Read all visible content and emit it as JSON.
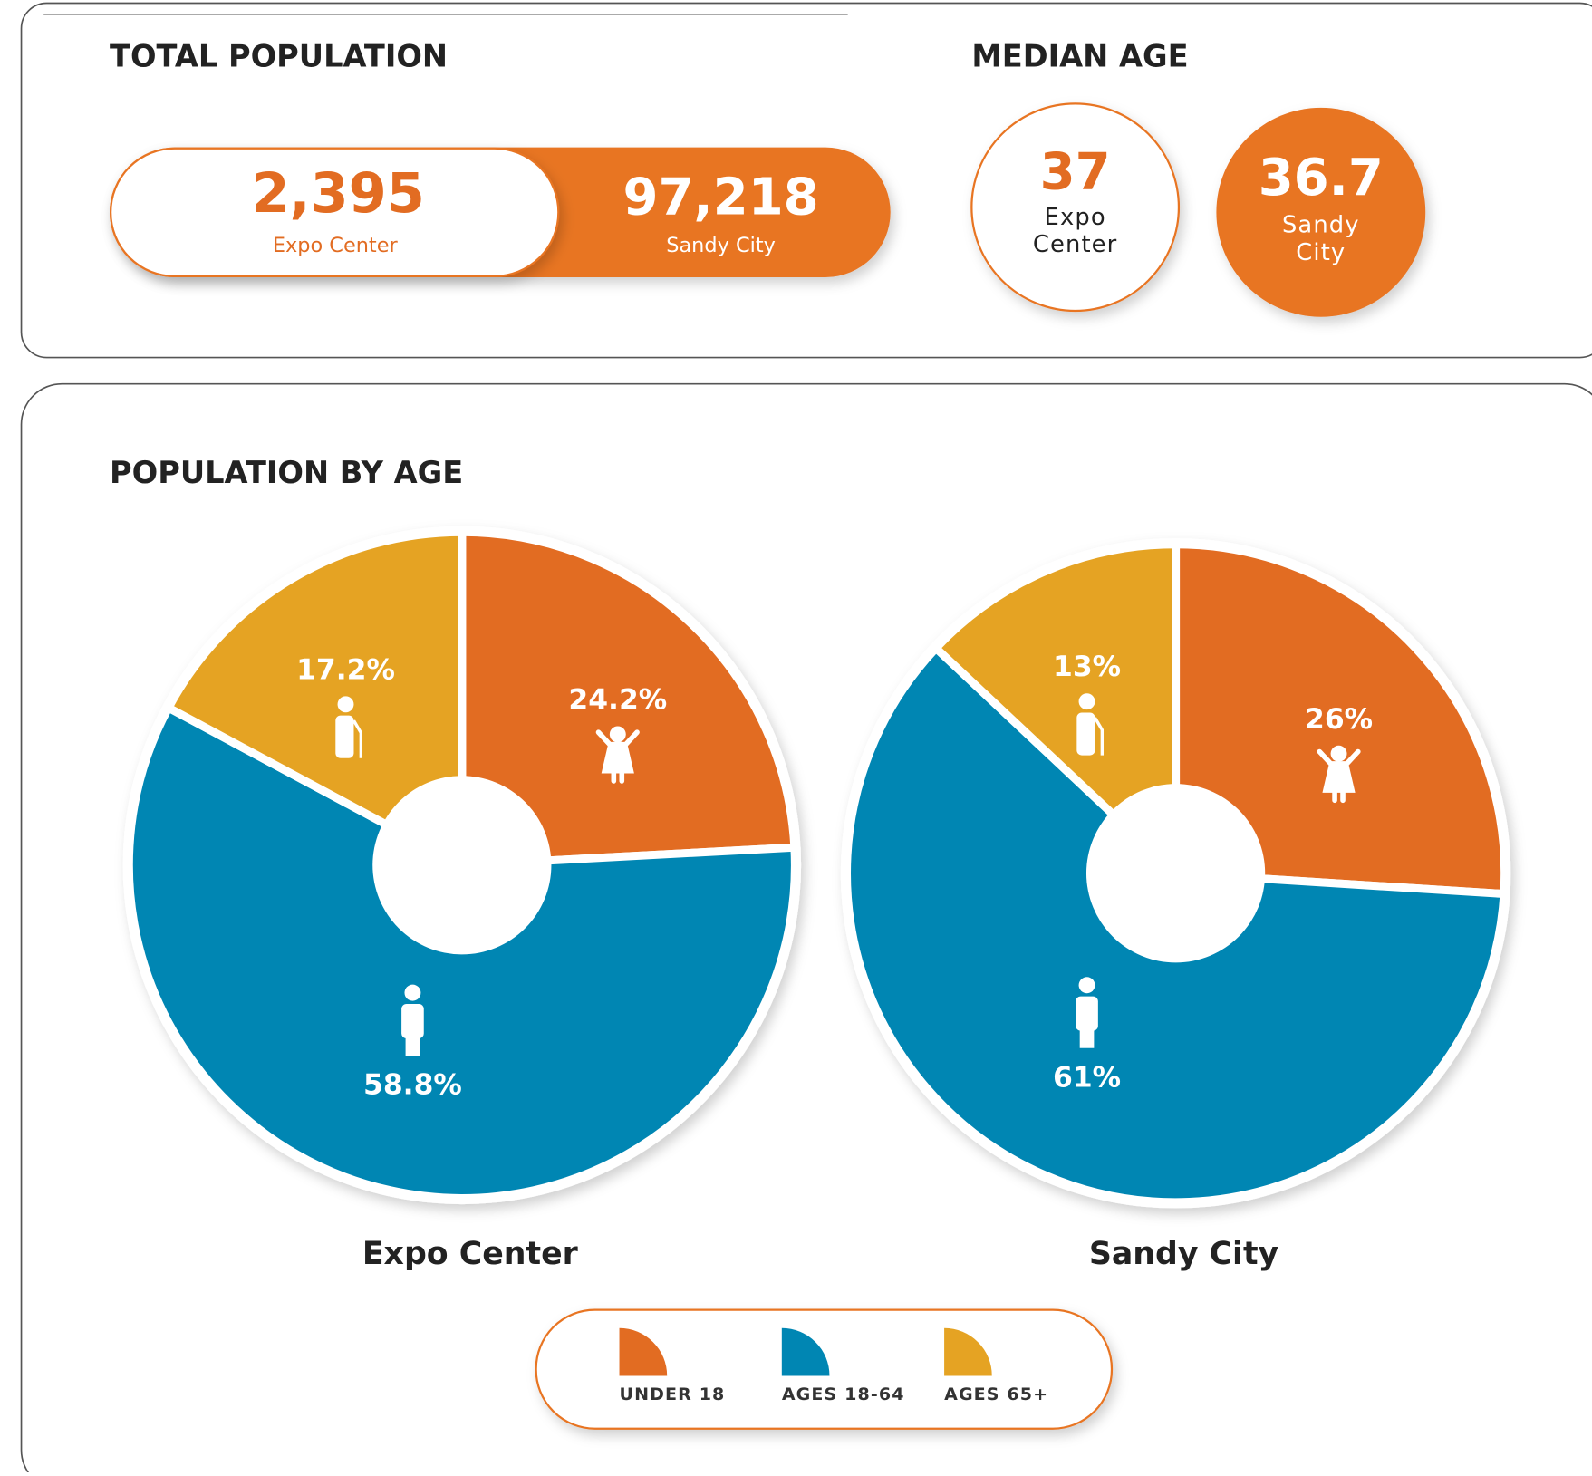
{
  "total_population": {
    "title": "TOTAL POPULATION",
    "items": [
      {
        "value": "2,395",
        "label": "Expo Center"
      },
      {
        "value": "97,218",
        "label": "Sandy City"
      }
    ]
  },
  "median_age": {
    "title": "MEDIAN AGE",
    "items": [
      {
        "value": 37,
        "label": "Expo Center"
      },
      {
        "value": 36.7,
        "label": "Sandy City"
      }
    ]
  },
  "section_title": "POPULATION BY AGE",
  "chart_data": [
    {
      "type": "pie",
      "title": "Expo Center",
      "categories": [
        "UNDER 18",
        "AGES 18-64",
        "AGES 65+"
      ],
      "values": [
        24.2,
        58.8,
        17.2
      ],
      "value_labels": [
        "24.2%",
        "58.8%",
        "17.2%"
      ],
      "colors": [
        "#e26c22",
        "#0086b3",
        "#e5a323"
      ]
    },
    {
      "type": "pie",
      "title": "Sandy City",
      "categories": [
        "UNDER 18",
        "AGES 18-64",
        "AGES 65+"
      ],
      "values": [
        26,
        61,
        13
      ],
      "value_labels": [
        "26%",
        "61%",
        "13%"
      ],
      "colors": [
        "#e26c22",
        "#0086b3",
        "#e5a323"
      ]
    }
  ]
}
